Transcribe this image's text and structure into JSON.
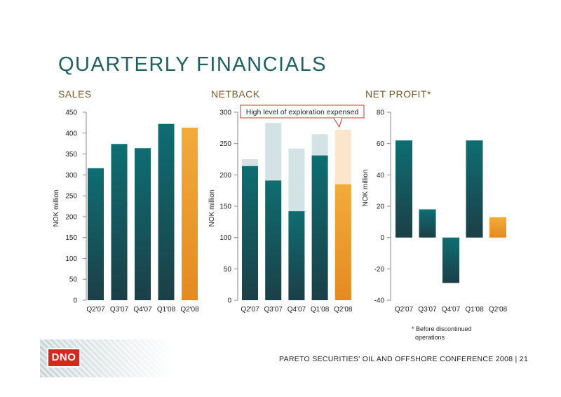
{
  "page": {
    "title": "QUARTERLY FINANCIALS",
    "footnote_lines": [
      "* Before discontinued",
      "operations"
    ],
    "footer": "PARETO SECURITIES' OIL AND OFFSHORE CONFERENCE 2008 |  21",
    "logo_text": "DNO"
  },
  "colors": {
    "teal_top": "#0d6e72",
    "teal_bottom": "#1c3f47",
    "orange_top": "#f2ab3a",
    "orange_bottom": "#e58a20",
    "pale_teal": "#d3e3e5",
    "pale_orange": "#fbe6cc",
    "axis": "#8a8a8a",
    "title": "#1f5f63",
    "panel_title": "#7a5a2a"
  },
  "chart_data": [
    {
      "type": "bar",
      "title": "SALES",
      "ylabel": "NOK million",
      "categories": [
        "Q2'07",
        "Q3'07",
        "Q4'07",
        "Q1'08",
        "Q2'08"
      ],
      "values": [
        316,
        374,
        364,
        422,
        413
      ],
      "highlight_index": 4,
      "ylim": [
        0,
        450
      ],
      "yticks": [
        0,
        50,
        100,
        150,
        200,
        250,
        300,
        350,
        400,
        450
      ]
    },
    {
      "type": "bar",
      "title": "NETBACK",
      "ylabel": "NOK million",
      "categories": [
        "Q2'07",
        "Q3'07",
        "Q4'07",
        "Q1'08",
        "Q2'08"
      ],
      "series": [
        {
          "values": [
            214,
            191,
            142,
            231,
            185
          ]
        },
        {
          "values": [
            225,
            283,
            242,
            265,
            272
          ]
        }
      ],
      "highlight_index": 4,
      "ylim": [
        0,
        300
      ],
      "yticks": [
        0,
        50,
        100,
        150,
        200,
        250,
        300
      ],
      "annotation": "High level of exploration expensed"
    },
    {
      "type": "bar",
      "title": "NET PROFIT*",
      "ylabel": "NOK million",
      "categories": [
        "Q2'07",
        "Q3'07",
        "Q4'07",
        "Q1'08",
        "Q2'08"
      ],
      "values": [
        62,
        18,
        -29,
        62,
        13
      ],
      "highlight_index": 4,
      "ylim": [
        -40,
        80
      ],
      "yticks": [
        -40,
        -20,
        0,
        20,
        40,
        60,
        80
      ]
    }
  ]
}
